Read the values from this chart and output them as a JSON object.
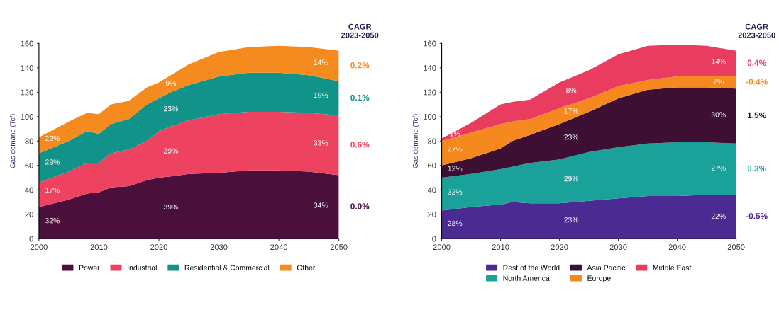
{
  "chart_data": [
    {
      "type": "area",
      "stacked": true,
      "ylabel": "Gas demand (Tcf)",
      "x": [
        2000,
        2005,
        2008,
        2010,
        2012,
        2015,
        2018,
        2020,
        2022,
        2025,
        2030,
        2035,
        2040,
        2045,
        2050
      ],
      "xlim": [
        2000,
        2050
      ],
      "xticks": [
        2000,
        2010,
        2020,
        2030,
        2040,
        2050
      ],
      "ylim": [
        0,
        160
      ],
      "yticks": [
        0,
        20,
        40,
        60,
        80,
        100,
        120,
        140,
        160
      ],
      "grid": false,
      "legend": "bottom",
      "series": [
        {
          "name": "Power",
          "color": "#4a0f3b",
          "values": [
            26,
            32,
            37,
            38,
            42,
            43,
            48,
            50,
            51,
            53,
            54,
            56,
            56,
            55,
            52
          ]
        },
        {
          "name": "Industrial",
          "color": "#ee4360",
          "values": [
            20,
            23,
            25,
            24,
            28,
            30,
            32,
            38,
            41,
            44,
            48,
            48,
            48,
            48,
            49
          ]
        },
        {
          "name": "Residential & Commercial",
          "color": "#12938a",
          "values": [
            24,
            25,
            26,
            24,
            24,
            25,
            30,
            27,
            28,
            29,
            31,
            32,
            32,
            31,
            28
          ]
        },
        {
          "name": "Other",
          "color": "#f58a1f",
          "values": [
            13,
            16,
            15,
            16,
            16,
            15,
            14,
            13,
            14,
            17,
            20,
            21,
            22,
            23,
            25
          ]
        }
      ],
      "annotations": [
        "CAGR\n2023-2050",
        "0.0%",
        "0.6%",
        "0.1%",
        "0.2%",
        "32%",
        "17%",
        "29%",
        "22%",
        "39%",
        "29%",
        "23%",
        "9%",
        "34%",
        "33%",
        "19%",
        "14%"
      ]
    },
    {
      "type": "area",
      "stacked": true,
      "ylabel": "Gas demand (Tcf)",
      "x": [
        2000,
        2005,
        2010,
        2012,
        2015,
        2020,
        2025,
        2030,
        2035,
        2040,
        2045,
        2050
      ],
      "xlim": [
        2000,
        2050
      ],
      "xticks": [
        2000,
        2010,
        2020,
        2030,
        2040,
        2050
      ],
      "ylim": [
        0,
        160
      ],
      "yticks": [
        0,
        20,
        40,
        60,
        80,
        100,
        120,
        140,
        160
      ],
      "grid": false,
      "legend": "bottom",
      "series": [
        {
          "name": "Rest of the World",
          "color": "#4b2a91",
          "values": [
            23,
            26,
            28,
            30,
            29,
            29,
            31,
            33,
            35,
            35,
            36,
            36
          ]
        },
        {
          "name": "North America",
          "color": "#1aa19a",
          "values": [
            27,
            27,
            29,
            29,
            33,
            36,
            40,
            42,
            43,
            44,
            43,
            42
          ]
        },
        {
          "name": "Asia Pacific",
          "color": "#3d0f33",
          "values": [
            10,
            13,
            17,
            21,
            23,
            29,
            33,
            40,
            44,
            45,
            45,
            45
          ]
        },
        {
          "name": "Europe",
          "color": "#f5891f",
          "values": [
            20,
            21,
            20,
            16,
            13,
            13,
            11,
            10,
            8,
            9,
            9,
            10
          ]
        },
        {
          "name": "Middle East",
          "color": "#ea3c5e",
          "values": [
            2,
            8,
            16,
            16,
            16,
            21,
            23,
            26,
            28,
            26,
            25,
            21
          ]
        }
      ],
      "annotations": [
        "CAGR\n2023-2050",
        "-0.5%",
        "0.3%",
        "1.5%",
        "-0.4%",
        "0.4%",
        "28%",
        "32%",
        "12%",
        "27%",
        "1%",
        "23%",
        "29%",
        "23%",
        "17%",
        "8%",
        "22%",
        "27%",
        "30%",
        "7%",
        "14%"
      ]
    }
  ]
}
